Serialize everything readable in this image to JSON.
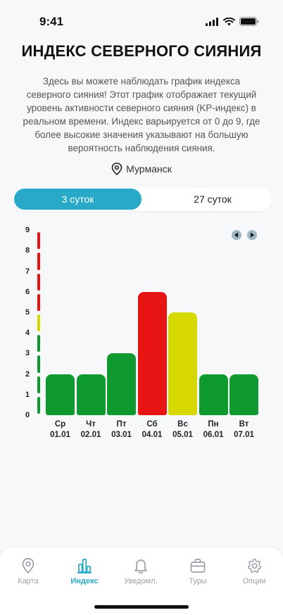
{
  "status": {
    "time": "9:41"
  },
  "header": {
    "title": "ИНДЕКС СЕВЕРНОГО СИЯНИЯ",
    "description": "Здесь вы можете наблюдать график индекса северного сияния! Этот график отображает текущий уровень активности северного сияния (KP-индекс) в реальном времени. Индекс варьируется от 0 до 9, где более высокие значения указывают на большую вероятность наблюдения сияния.",
    "location": "Мурманск"
  },
  "segmented": {
    "options": [
      "3 суток",
      "27 суток"
    ],
    "selected": "3 суток"
  },
  "chart_data": {
    "type": "bar",
    "categories": [
      "Ср",
      "Чт",
      "Пт",
      "Сб",
      "Вс",
      "Пн",
      "Вт"
    ],
    "dates": [
      "01.01",
      "02.01",
      "03.01",
      "04.01",
      "05.01",
      "06.01",
      "07.01"
    ],
    "values": [
      2,
      2,
      3,
      6,
      5,
      2,
      2
    ],
    "colors": [
      "#0e9a2f",
      "#0e9a2f",
      "#0e9a2f",
      "#e81414",
      "#d6d800",
      "#0e9a2f",
      "#0e9a2f"
    ],
    "ylim": [
      0,
      9
    ],
    "yticks": [
      "0",
      "1",
      "2",
      "3",
      "4",
      "5",
      "6",
      "7",
      "8",
      "9"
    ],
    "scale_colors": {
      "low": "#0e9a2f",
      "mid": "#d6d800",
      "high": "#e81414"
    }
  },
  "tabbar": {
    "items": [
      {
        "label": "Карта",
        "icon": "map-pin-icon",
        "active": false
      },
      {
        "label": "Индекс",
        "icon": "bar-chart-icon",
        "active": true
      },
      {
        "label": "Уведомл.",
        "icon": "bell-icon",
        "active": false
      },
      {
        "label": "Туры",
        "icon": "briefcase-icon",
        "active": false
      },
      {
        "label": "Опции",
        "icon": "gear-icon",
        "active": false
      }
    ]
  }
}
